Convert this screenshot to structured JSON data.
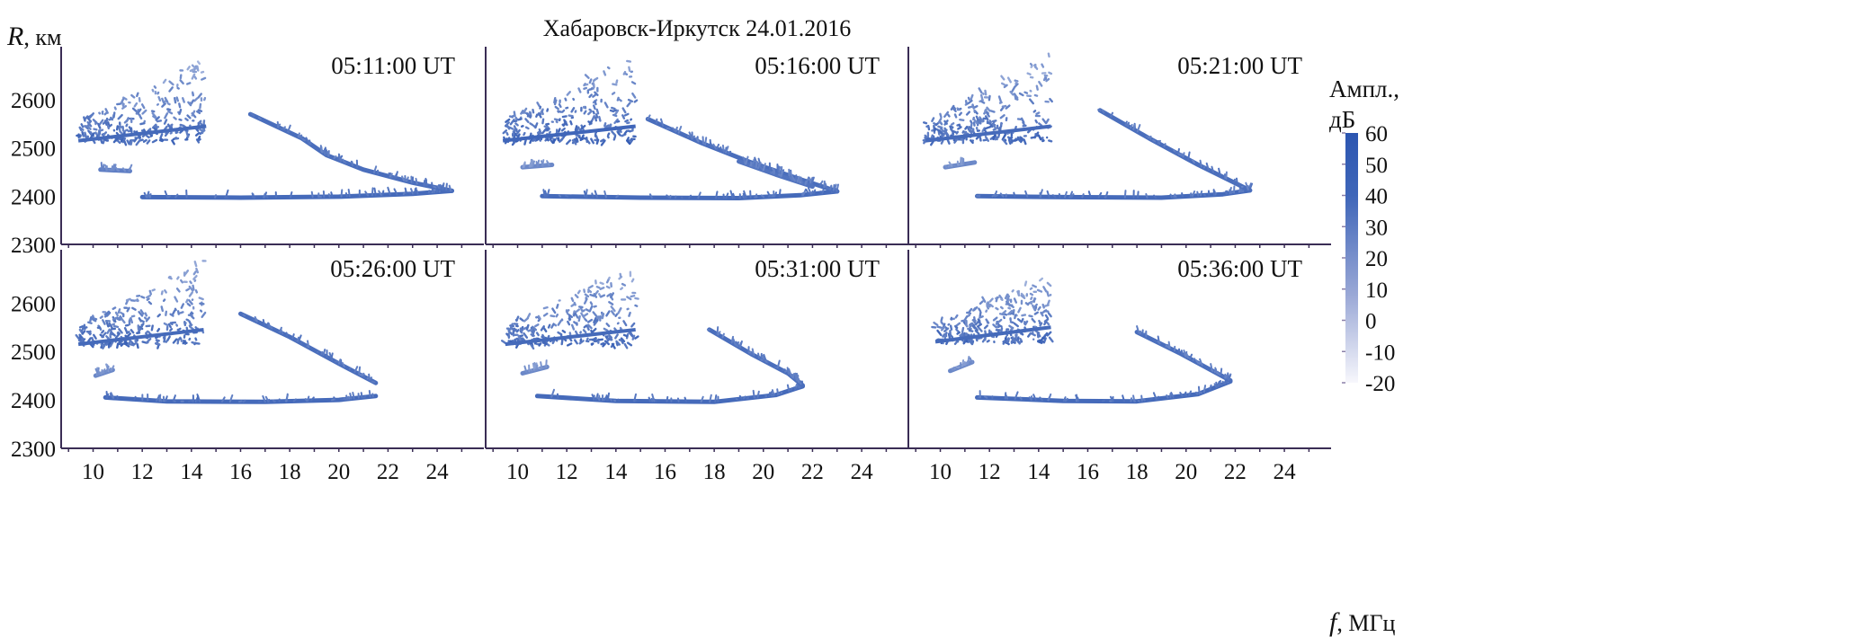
{
  "chart_data": {
    "type": "heatmap",
    "title": "Хабаровск-Иркутск 24.01.2016",
    "ylabel_symbol": "R",
    "ylabel_unit": ", км",
    "xlabel_symbol": "f",
    "xlabel_unit": ", МГц",
    "xlim": [
      8.7,
      25.9
    ],
    "ylim": [
      2300,
      2710
    ],
    "xticks": [
      10,
      12,
      14,
      16,
      18,
      20,
      22,
      24
    ],
    "yticks": [
      2300,
      2400,
      2500,
      2600
    ],
    "grid": false,
    "colorbar": {
      "label_line1": "Ампл.,",
      "label_line2": "дБ",
      "range": [
        -20,
        60
      ],
      "ticks": [
        60,
        50,
        40,
        30,
        20,
        10,
        0,
        -10,
        -20
      ],
      "colors": [
        "#f7f7fc",
        "#2c56b1"
      ]
    },
    "panels": [
      {
        "time": "05:11:00 UT",
        "traces": [
          {
            "name": "low-ray",
            "amp": 50,
            "points": [
              [
                12,
                2398
              ],
              [
                16,
                2397
              ],
              [
                20,
                2399
              ],
              [
                23,
                2405
              ],
              [
                24.6,
                2411
              ]
            ]
          },
          {
            "name": "high-ray",
            "amp": 48,
            "points": [
              [
                16.4,
                2570
              ],
              [
                18.5,
                2520
              ],
              [
                19.5,
                2485
              ],
              [
                21,
                2455
              ],
              [
                23,
                2428
              ],
              [
                24.6,
                2411
              ]
            ]
          },
          {
            "name": "echo-2455",
            "amp": 40,
            "points": [
              [
                10.3,
                2455
              ],
              [
                11.5,
                2452
              ]
            ]
          }
        ],
        "clusters": [
          {
            "name": "f-spread",
            "f": [
              9.4,
              14.6
            ],
            "R": [
              2515,
              2690
            ],
            "amp": 40
          }
        ]
      },
      {
        "time": "05:16:00 UT",
        "traces": [
          {
            "name": "low-ray",
            "amp": 50,
            "points": [
              [
                11,
                2400
              ],
              [
                15,
                2397
              ],
              [
                19,
                2396
              ],
              [
                21.5,
                2402
              ],
              [
                23,
                2410
              ]
            ]
          },
          {
            "name": "high-ray",
            "amp": 48,
            "points": [
              [
                15.3,
                2560
              ],
              [
                17.5,
                2510
              ],
              [
                19.5,
                2470
              ],
              [
                21.5,
                2435
              ],
              [
                23,
                2410
              ]
            ]
          },
          {
            "name": "second-ray",
            "amp": 45,
            "points": [
              [
                19,
                2472
              ],
              [
                20.5,
                2445
              ],
              [
                22,
                2420
              ]
            ]
          },
          {
            "name": "echo-2455",
            "amp": 35,
            "points": [
              [
                10.2,
                2460
              ],
              [
                11.4,
                2465
              ]
            ]
          }
        ],
        "clusters": [
          {
            "name": "f-spread",
            "f": [
              9.4,
              14.8
            ],
            "R": [
              2515,
              2700
            ],
            "amp": 42
          }
        ]
      },
      {
        "time": "05:21:00 UT",
        "traces": [
          {
            "name": "low-ray",
            "amp": 50,
            "points": [
              [
                11.5,
                2400
              ],
              [
                15,
                2398
              ],
              [
                19,
                2397
              ],
              [
                21.5,
                2404
              ],
              [
                22.6,
                2412
              ]
            ]
          },
          {
            "name": "high-ray",
            "amp": 48,
            "points": [
              [
                16.5,
                2578
              ],
              [
                18.5,
                2520
              ],
              [
                20.5,
                2465
              ],
              [
                22.6,
                2412
              ]
            ]
          },
          {
            "name": "echo-2455",
            "amp": 35,
            "points": [
              [
                10.2,
                2460
              ],
              [
                11.4,
                2470
              ]
            ]
          }
        ],
        "clusters": [
          {
            "name": "f-spread",
            "f": [
              9.4,
              14.5
            ],
            "R": [
              2515,
              2695
            ],
            "amp": 40
          }
        ]
      },
      {
        "time": "05:26:00 UT",
        "traces": [
          {
            "name": "low-ray",
            "amp": 50,
            "points": [
              [
                10.5,
                2405
              ],
              [
                13,
                2397
              ],
              [
                17,
                2396
              ],
              [
                20,
                2400
              ],
              [
                21.5,
                2408
              ]
            ]
          },
          {
            "name": "high-ray",
            "amp": 48,
            "points": [
              [
                16,
                2578
              ],
              [
                18,
                2530
              ],
              [
                20,
                2475
              ],
              [
                21.5,
                2435
              ]
            ]
          },
          {
            "name": "echo-2455",
            "amp": 35,
            "points": [
              [
                10.1,
                2450
              ],
              [
                10.8,
                2462
              ]
            ]
          }
        ],
        "clusters": [
          {
            "name": "f-spread",
            "f": [
              9.4,
              14.5
            ],
            "R": [
              2515,
              2690
            ],
            "amp": 40
          }
        ]
      },
      {
        "time": "05:31:00 UT",
        "traces": [
          {
            "name": "low-ray",
            "amp": 50,
            "points": [
              [
                10.8,
                2408
              ],
              [
                14,
                2398
              ],
              [
                18,
                2396
              ],
              [
                20.5,
                2410
              ],
              [
                21.6,
                2428
              ]
            ]
          },
          {
            "name": "high-ray",
            "amp": 48,
            "points": [
              [
                17.8,
                2545
              ],
              [
                19.5,
                2495
              ],
              [
                21,
                2455
              ],
              [
                21.6,
                2430
              ]
            ]
          },
          {
            "name": "echo-2455",
            "amp": 35,
            "points": [
              [
                10.2,
                2455
              ],
              [
                11.2,
                2468
              ]
            ]
          }
        ],
        "clusters": [
          {
            "name": "f-spread",
            "f": [
              9.5,
              14.8
            ],
            "R": [
              2515,
              2680
            ],
            "amp": 40
          }
        ]
      },
      {
        "time": "05:36:00 UT",
        "traces": [
          {
            "name": "low-ray",
            "amp": 50,
            "points": [
              [
                11.5,
                2405
              ],
              [
                15,
                2398
              ],
              [
                18,
                2397
              ],
              [
                20.5,
                2412
              ],
              [
                21.8,
                2438
              ]
            ]
          },
          {
            "name": "high-ray",
            "amp": 48,
            "points": [
              [
                18,
                2540
              ],
              [
                19.8,
                2495
              ],
              [
                21,
                2462
              ],
              [
                21.8,
                2440
              ]
            ]
          },
          {
            "name": "echo-2455",
            "amp": 35,
            "points": [
              [
                10.4,
                2460
              ],
              [
                11.3,
                2478
              ]
            ]
          }
        ],
        "clusters": [
          {
            "name": "f-spread",
            "f": [
              9.8,
              14.5
            ],
            "R": [
              2520,
              2660
            ],
            "amp": 40
          }
        ]
      }
    ]
  }
}
